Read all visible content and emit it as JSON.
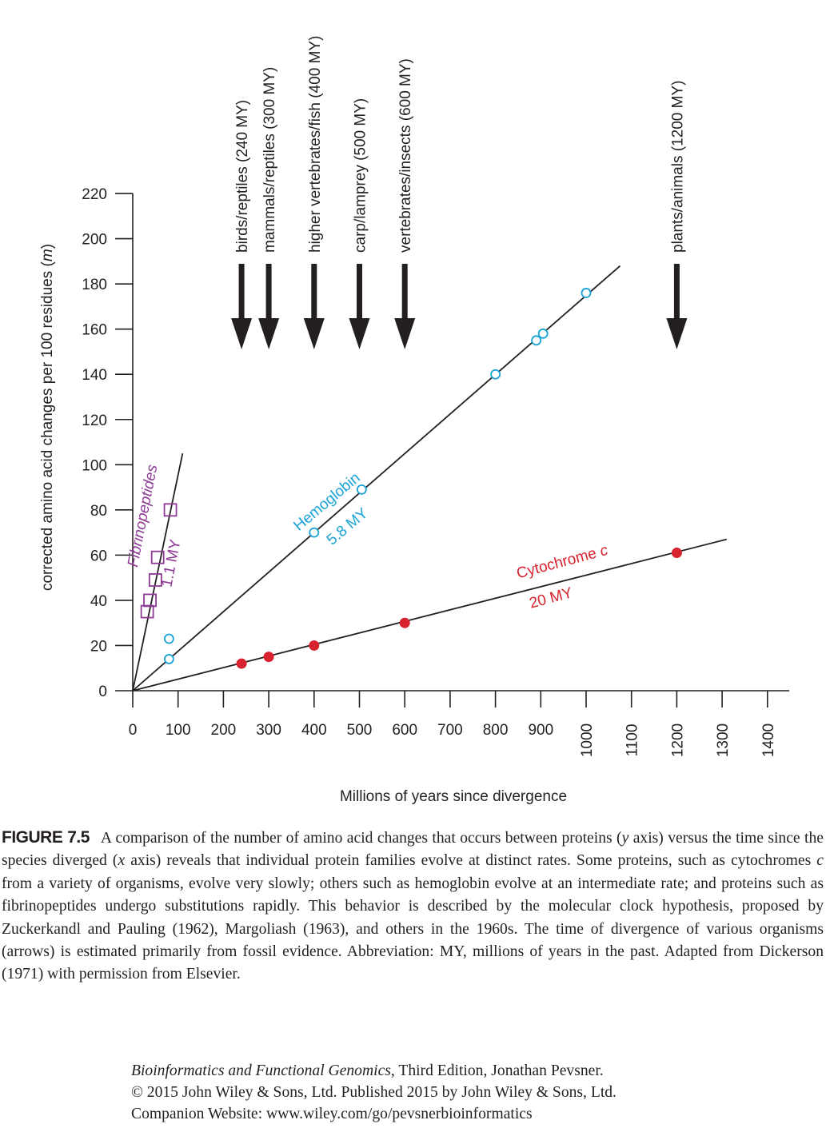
{
  "chart_data": {
    "type": "scatter",
    "xlabel": "Millions of years since divergence",
    "ylabel_main": "corrected amino acid changes per 100 residues (",
    "ylabel_var": "m",
    "ylabel_end": ")",
    "xlim": [
      0,
      1450
    ],
    "ylim": [
      0,
      220
    ],
    "xticks": [
      0,
      100,
      200,
      300,
      400,
      500,
      600,
      700,
      800,
      900,
      1000,
      1100,
      1200,
      1300,
      1400
    ],
    "xtick_labels": [
      "0",
      "100",
      "200",
      "300",
      "400",
      "500",
      "600",
      "700",
      "800",
      "900",
      "1000",
      "1100",
      "1200",
      "1300",
      "1400"
    ],
    "yticks": [
      0,
      20,
      40,
      60,
      80,
      100,
      120,
      140,
      160,
      180,
      200,
      220
    ],
    "ytick_labels": [
      "0",
      "20",
      "40",
      "60",
      "80",
      "100",
      "120",
      "140",
      "160",
      "180",
      "200",
      "220"
    ],
    "series": [
      {
        "name": "Fibrinopeptides",
        "rate_label": "1.1 MY",
        "color": "#8e3a96",
        "marker": "square",
        "line": [
          [
            0,
            0
          ],
          [
            110,
            105
          ]
        ],
        "points": [
          [
            32,
            35
          ],
          [
            38,
            40
          ],
          [
            50,
            49
          ],
          [
            55,
            59
          ],
          [
            83,
            80
          ]
        ]
      },
      {
        "name": "Hemoglobin",
        "rate_label": "5.8 MY",
        "color": "#1aa3d6",
        "marker": "circle-open",
        "line": [
          [
            0,
            0
          ],
          [
            1075,
            188
          ]
        ],
        "points": [
          [
            80,
            14
          ],
          [
            80,
            23
          ],
          [
            400,
            70
          ],
          [
            505,
            89
          ],
          [
            800,
            140
          ],
          [
            890,
            155
          ],
          [
            905,
            158
          ],
          [
            1000,
            176
          ]
        ]
      },
      {
        "name": "Cytochrome c",
        "name_main": "Cytochrome ",
        "name_var": "c",
        "rate_label": "20 MY",
        "color": "#d8222d",
        "marker": "circle-filled",
        "line": [
          [
            0,
            0
          ],
          [
            1310,
            67
          ]
        ],
        "points": [
          [
            240,
            12
          ],
          [
            300,
            15
          ],
          [
            400,
            20
          ],
          [
            600,
            30
          ],
          [
            1200,
            61
          ]
        ]
      }
    ],
    "annotations": [
      {
        "x": 240,
        "label": "birds/reptiles (240 MY)"
      },
      {
        "x": 300,
        "label": "mammals/reptiles (300 MY)"
      },
      {
        "x": 400,
        "label": "higher vertebrates/fish (400 MY)"
      },
      {
        "x": 500,
        "label": "carp/lamprey (500 MY)"
      },
      {
        "x": 600,
        "label": "vertebrates/insects (600 MY)"
      },
      {
        "x": 1200,
        "label": "plants/animals (1200 MY)"
      }
    ],
    "colors": {
      "axis": "#231f20",
      "fibrinopeptides": "#8e3a96",
      "hemoglobin": "#1aa3d6",
      "cytochrome": "#d8222d"
    }
  },
  "caption": {
    "figure_label": "FIGURE 7.5",
    "segments": [
      "A comparison of the number of amino acid changes that occurs between proteins (",
      "y",
      " axis) versus the time since the species diverged (",
      "x",
      " axis) reveals that individual protein families evolve at distinct rates. Some proteins, such as cytochromes ",
      "c",
      " from a variety of organisms, evolve very slowly; others such as hemoglobin evolve at an intermediate rate; and proteins such as fibrinopeptides undergo substitutions rapidly. This behavior is described by the molecular clock hypothesis, proposed by Zuckerkandl and Pauling (1962), Margoliash (1963), and others in the 1960s. The time of divergence of various organisms (arrows) is estimated primarily from fossil evidence. Abbreviation: MY, millions of years in the past. Adapted from Dickerson (1971) with permission from Elsevier."
    ]
  },
  "credits": {
    "book_title": "Bioinformatics and Functional Genomics",
    "book_rest": ", Third Edition, Jonathan Pevsner.",
    "copyright": "© 2015 John Wiley & Sons, Ltd. Published 2015 by John Wiley & Sons, Ltd.",
    "website": "Companion Website: www.wiley.com/go/pevsnerbioinformatics"
  }
}
